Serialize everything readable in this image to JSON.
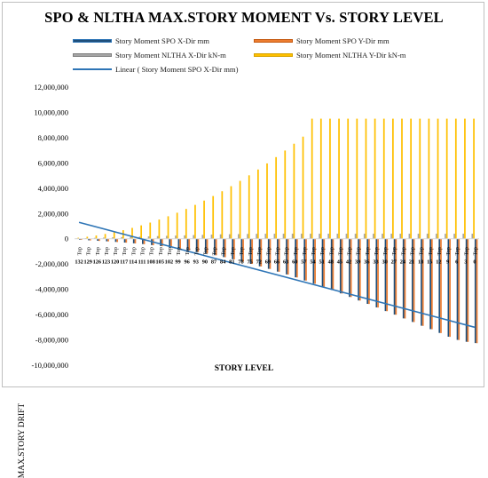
{
  "title": "SPO & NLTHA  MAX.STORY MOMENT Vs. STORY LEVEL",
  "legend": {
    "items": [
      {
        "label": "Story Moment SPO X-Dir mm",
        "color": "#2e75b6",
        "fill": "#1f4e79",
        "kind": "bar"
      },
      {
        "label": "Story Moment SPO Y-Dir mm",
        "color": "#c55a11",
        "fill": "#ed7d31",
        "kind": "bar"
      },
      {
        "label": "Story Moment NLTHA X-Dir kN-m",
        "color": "#7f7f7f",
        "fill": "#a5a5a5",
        "kind": "bar"
      },
      {
        "label": "Story Moment NLTHA Y-Dir kN-m",
        "color": "#d6a300",
        "fill": "#ffc000",
        "kind": "bar"
      },
      {
        "label": "Linear ( Story Moment SPO X-Dir mm)",
        "color": "#2e75b6",
        "kind": "line"
      }
    ]
  },
  "chart_data": {
    "type": "bar",
    "title": "SPO & NLTHA  MAX.STORY MOMENT Vs. STORY LEVEL",
    "xlabel": "STORY LEVEL",
    "ylabel": "MAX.STORY DRIFT",
    "ylim": [
      -10000000,
      12000000
    ],
    "yticks": [
      -10000000,
      -8000000,
      -6000000,
      -4000000,
      -2000000,
      0,
      2000000,
      4000000,
      6000000,
      8000000,
      10000000,
      12000000
    ],
    "ytick_labels": [
      "-10,000,000",
      "-8,000,000",
      "-6,000,000",
      "-4,000,000",
      "-2,000,000",
      "0",
      "2,000,000",
      "4,000,000",
      "6,000,000",
      "8,000,000",
      "10,000,000",
      "12,000,000"
    ],
    "category_top_label": "Top",
    "categories": [
      "132",
      "129",
      "126",
      "123",
      "120",
      "117",
      "114",
      "111",
      "108",
      "105",
      "102",
      "99",
      "96",
      "93",
      "90",
      "87",
      "84",
      "81",
      "78",
      "75",
      "72",
      "69",
      "66",
      "63",
      "60",
      "57",
      "54",
      "51",
      "48",
      "45",
      "42",
      "39",
      "36",
      "33",
      "30",
      "27",
      "24",
      "21",
      "18",
      "15",
      "12",
      "9",
      "6",
      "3",
      "0"
    ],
    "series": [
      {
        "name": "Story Moment SPO X-Dir mm",
        "color": "#1f4e79",
        "values": [
          -80000,
          -120000,
          -160000,
          -200000,
          -250000,
          -300000,
          -360000,
          -420000,
          -500000,
          -580000,
          -680000,
          -780000,
          -900000,
          -1020000,
          -1150000,
          -1300000,
          -1450000,
          -1620000,
          -1800000,
          -1980000,
          -2180000,
          -2380000,
          -2600000,
          -2820000,
          -3050000,
          -3300000,
          -3550000,
          -3800000,
          -4050000,
          -4320000,
          -4600000,
          -4880000,
          -5150000,
          -5430000,
          -5720000,
          -6000000,
          -6300000,
          -6580000,
          -6880000,
          -7150000,
          -7450000,
          -7750000,
          -8000000,
          -8150000,
          -8250000
        ]
      },
      {
        "name": "Story Moment SPO Y-Dir mm",
        "color": "#ed7d31",
        "values": [
          -90000,
          -130000,
          -170000,
          -210000,
          -260000,
          -310000,
          -370000,
          -430000,
          -510000,
          -590000,
          -690000,
          -790000,
          -910000,
          -1030000,
          -1160000,
          -1310000,
          -1460000,
          -1630000,
          -1810000,
          -1990000,
          -2190000,
          -2390000,
          -2610000,
          -2830000,
          -3060000,
          -3310000,
          -3560000,
          -3810000,
          -4060000,
          -4330000,
          -4610000,
          -4890000,
          -5160000,
          -5440000,
          -5730000,
          -6010000,
          -6310000,
          -6590000,
          -6890000,
          -7160000,
          -7460000,
          -7760000,
          -8010000,
          -8160000,
          -8260000
        ]
      },
      {
        "name": "Story Moment NLTHA X-Dir kN-m",
        "color": "#a5a5a5",
        "values": [
          30000,
          50000,
          70000,
          90000,
          110000,
          130000,
          150000,
          170000,
          190000,
          210000,
          230000,
          250000,
          270000,
          290000,
          310000,
          330000,
          350000,
          360000,
          370000,
          380000,
          390000,
          400000,
          400000,
          400000,
          400000,
          400000,
          400000,
          400000,
          400000,
          400000,
          400000,
          400000,
          400000,
          400000,
          400000,
          400000,
          400000,
          400000,
          400000,
          400000,
          400000,
          400000,
          400000,
          400000,
          400000
        ]
      },
      {
        "name": "Story Moment NLTHA Y-Dir kN-m",
        "color": "#ffc000",
        "values": [
          80000,
          160000,
          260000,
          380000,
          520000,
          680000,
          860000,
          1060000,
          1280000,
          1520000,
          1780000,
          2060000,
          2360000,
          2680000,
          3020000,
          3380000,
          3760000,
          4160000,
          4580000,
          5020000,
          5480000,
          5960000,
          6460000,
          6980000,
          7520000,
          8080000,
          9500000,
          9500000,
          9500000,
          9500000,
          9500000,
          9500000,
          9500000,
          9500000,
          9500000,
          9500000,
          9500000,
          9500000,
          9500000,
          9500000,
          9500000,
          9500000,
          9500000,
          9500000,
          9500000
        ]
      }
    ],
    "trendline": {
      "name": "Linear ( Story Moment SPO X-Dir mm)",
      "color": "#2e75b6",
      "start": 1300000,
      "end": -7000000
    },
    "grid": false,
    "legend_position": "top"
  }
}
